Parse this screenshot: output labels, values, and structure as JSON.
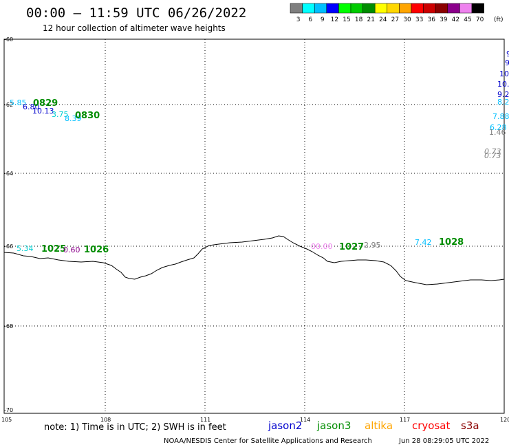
{
  "header": {
    "title": "00:00 – 11:59 UTC 06/26/2022",
    "subtitle": "12 hour collection of altimeter wave heights"
  },
  "legend": {
    "colors": [
      "#7f7f7f",
      "#00ffff",
      "#00bfff",
      "#0000ff",
      "#00ff00",
      "#00cc00",
      "#008c00",
      "#ffff00",
      "#ffd700",
      "#ffa500",
      "#ff0000",
      "#cc0000",
      "#8b0000",
      "#8b008b",
      "#ee82ee",
      "#000000"
    ],
    "ticks": [
      "3",
      "6",
      "9",
      "12",
      "15",
      "18",
      "21",
      "24",
      "27",
      "30",
      "33",
      "36",
      "39",
      "42",
      "45",
      "70"
    ],
    "unit": "(ft)"
  },
  "axes": {
    "x_ticks": [
      "105",
      "108",
      "111",
      "114",
      "117",
      "120"
    ],
    "y_ticks": [
      "-60",
      "-62",
      "-64",
      "-66",
      "-68",
      "-70"
    ]
  },
  "observations": [
    {
      "text": "5.85",
      "color": "#00bfff"
    },
    {
      "text": "6.80",
      "color": "#0000cd"
    },
    {
      "text": "0829",
      "color": "#008c00",
      "kind": "pass"
    },
    {
      "text": "10.13",
      "color": "#0000cd"
    },
    {
      "text": "3.75",
      "color": "#00ced1"
    },
    {
      "text": "8.39",
      "color": "#00bfff"
    },
    {
      "text": "0830",
      "color": "#008c00",
      "kind": "pass"
    },
    {
      "text": "5.34",
      "color": "#00ced1"
    },
    {
      "text": "1025",
      "color": "#008c00",
      "kind": "pass"
    },
    {
      "text": "0.60",
      "color": "#8b008b"
    },
    {
      "text": "1026",
      "color": "#008c00",
      "kind": "pass"
    },
    {
      "text": "00.00",
      "color": "#ee82ee"
    },
    {
      "text": "1027",
      "color": "#008c00",
      "kind": "pass"
    },
    {
      "text": "2.95",
      "color": "#7f7f7f"
    },
    {
      "text": "7.42",
      "color": "#00bfff"
    },
    {
      "text": "1028",
      "color": "#008c00",
      "kind": "pass"
    },
    {
      "text": "9",
      "color": "#0000cd"
    },
    {
      "text": "9",
      "color": "#0000cd"
    },
    {
      "text": "10.",
      "color": "#0000cd"
    },
    {
      "text": "10.",
      "color": "#0000cd"
    },
    {
      "text": "9.2",
      "color": "#0000cd"
    },
    {
      "text": "8.2",
      "color": "#00bfff"
    },
    {
      "text": "7.88",
      "color": "#00bfff"
    },
    {
      "text": "6.28",
      "color": "#00bfff"
    },
    {
      "text": "1.46",
      "color": "#7f7f7f"
    },
    {
      "text": "0.73",
      "color": "#7f7f7f"
    },
    {
      "text": "0.73",
      "color": "#7f7f7f"
    }
  ],
  "note": "note:  1) Time is in UTC;  2) SWH is in feet",
  "satellites": [
    {
      "name": "jason2",
      "color": "#0000cd"
    },
    {
      "name": "jason3",
      "color": "#008c00"
    },
    {
      "name": "altika",
      "color": "#ffa500"
    },
    {
      "name": "cryosat",
      "color": "#ff0000"
    },
    {
      "name": "s3a",
      "color": "#8b0000"
    }
  ],
  "footer": {
    "credit": "NOAA/NESDIS Center for Satellite Applications and Research",
    "generated": "Jun 28 08:29:05 UTC 2022"
  }
}
